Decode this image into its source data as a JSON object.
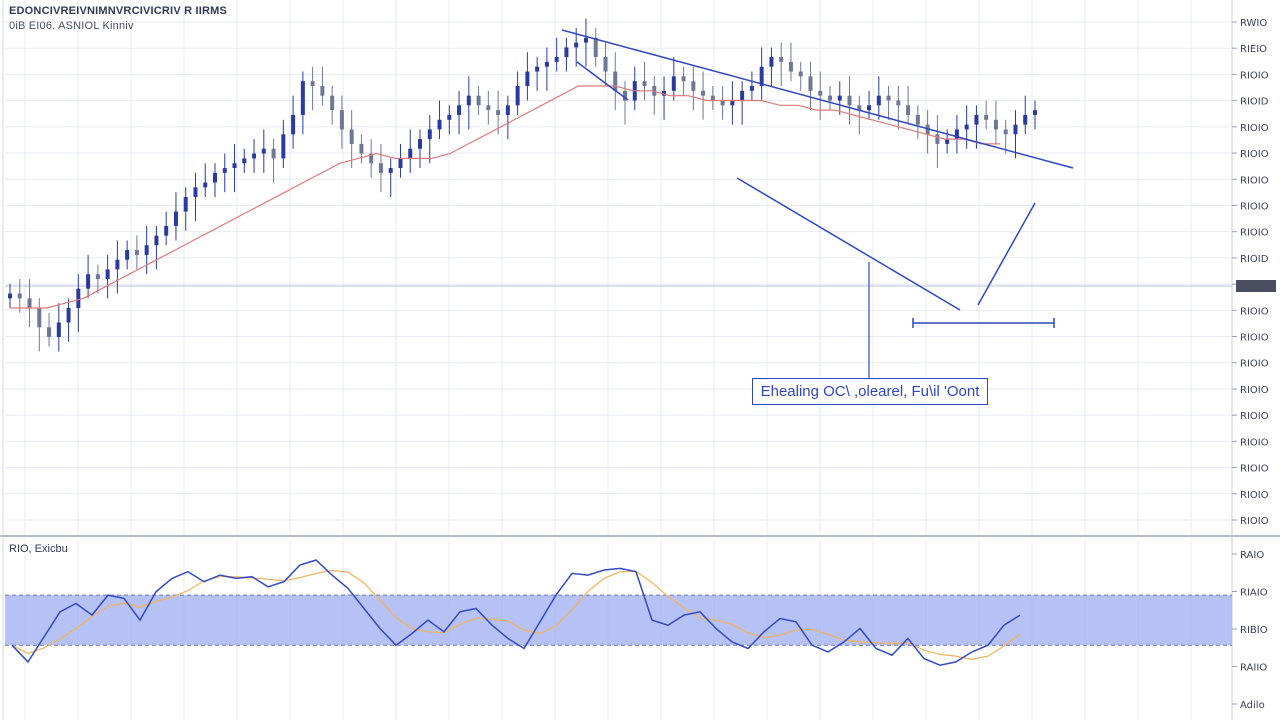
{
  "header": {
    "line1": "EDONCIVREIVNIMNVRCIVICRIV R IIRMS",
    "line2": "0iB EI06. ASNIOL Kinniv"
  },
  "callout": {
    "text": "Ehealing OC\\ ,olearel, Fu\\il 'Oont"
  },
  "rsi_panel": {
    "label": "RIO, Exicbu"
  },
  "colors": {
    "up_candle": "#2b3a9e",
    "down_candle": "#6e7894",
    "moving_average": "#e07a7a",
    "trendline": "#2f47c4",
    "rsi_line": "#3349c8",
    "rsi_signal": "#f2b25a",
    "rsi_band": "#a9b7f4",
    "grid": "#e8ebf2"
  },
  "chart_data": [
    {
      "type": "candlestick",
      "title": "",
      "y_axis_position": "right",
      "y_tick_labels": [
        "RWIO",
        "RIEIO",
        "RIOIO",
        "RIOID",
        "RIOIO",
        "RIOIO",
        "RIOIO",
        "RIOIO",
        "RIOIO",
        "RIOID",
        "RIOIO",
        "RIOIO",
        "RIOIO",
        "RIOIO",
        "RIOIO",
        "RIOIO",
        "RIOIO",
        "RIOIO",
        "RIOIO",
        "RIOIO"
      ],
      "ylim": [
        0,
        100
      ],
      "close_series": [
        49,
        48,
        46,
        42,
        40,
        43,
        46,
        50,
        53,
        52,
        54,
        56,
        58,
        57,
        59,
        61,
        63,
        66,
        69,
        71,
        72,
        74,
        75,
        76,
        77,
        78,
        79,
        77,
        82,
        86,
        93,
        92,
        90,
        87,
        83,
        80,
        78,
        76,
        74,
        75,
        77,
        79,
        81,
        83,
        85,
        86,
        88,
        90,
        88,
        87,
        86,
        88,
        92,
        95,
        96,
        97,
        98,
        100,
        101,
        102,
        98,
        95,
        91,
        89,
        93,
        92,
        90,
        91,
        94,
        93,
        91,
        90,
        89,
        88,
        89,
        91,
        92,
        96,
        98,
        97,
        95,
        94,
        91,
        90,
        89,
        90,
        88,
        87,
        88,
        90,
        89,
        88,
        86,
        84,
        82,
        80,
        81,
        83,
        84,
        86,
        85,
        83,
        82,
        84,
        86,
        87
      ],
      "moving_average": [
        46,
        46,
        46,
        47,
        48,
        50,
        52,
        54,
        56,
        58,
        60,
        62,
        64,
        66,
        68,
        70,
        72,
        74,
        76,
        77,
        78,
        77,
        77,
        77,
        78,
        80,
        82,
        84,
        86,
        88,
        90,
        92,
        92,
        92,
        91,
        91,
        90,
        90,
        89,
        89,
        89,
        89,
        88,
        88,
        87,
        87,
        86,
        85,
        84,
        83,
        82,
        81,
        81,
        80,
        80
      ]
    },
    {
      "type": "line",
      "title": "",
      "series": [
        {
          "values": [
            40,
            30,
            45,
            60,
            65,
            58,
            70,
            68,
            55,
            72,
            80,
            84,
            78,
            82,
            80,
            81,
            75,
            78,
            88,
            91,
            82,
            74,
            62,
            50,
            40,
            47,
            55,
            48,
            60,
            62,
            52,
            44,
            38,
            54,
            70,
            83,
            82,
            85,
            86,
            84,
            55,
            52,
            58,
            60,
            50,
            42,
            38,
            48,
            56,
            54,
            40,
            36,
            42,
            50,
            38,
            34,
            44,
            32,
            28,
            30,
            36,
            40,
            52,
            58
          ]
        }
      ],
      "ylim": [
        0,
        100
      ],
      "band": [
        40,
        70
      ],
      "y_tick_labels": [
        "RAIO",
        "RIAIO",
        "RIBIO",
        "RAIIO",
        "Adilo"
      ]
    }
  ]
}
